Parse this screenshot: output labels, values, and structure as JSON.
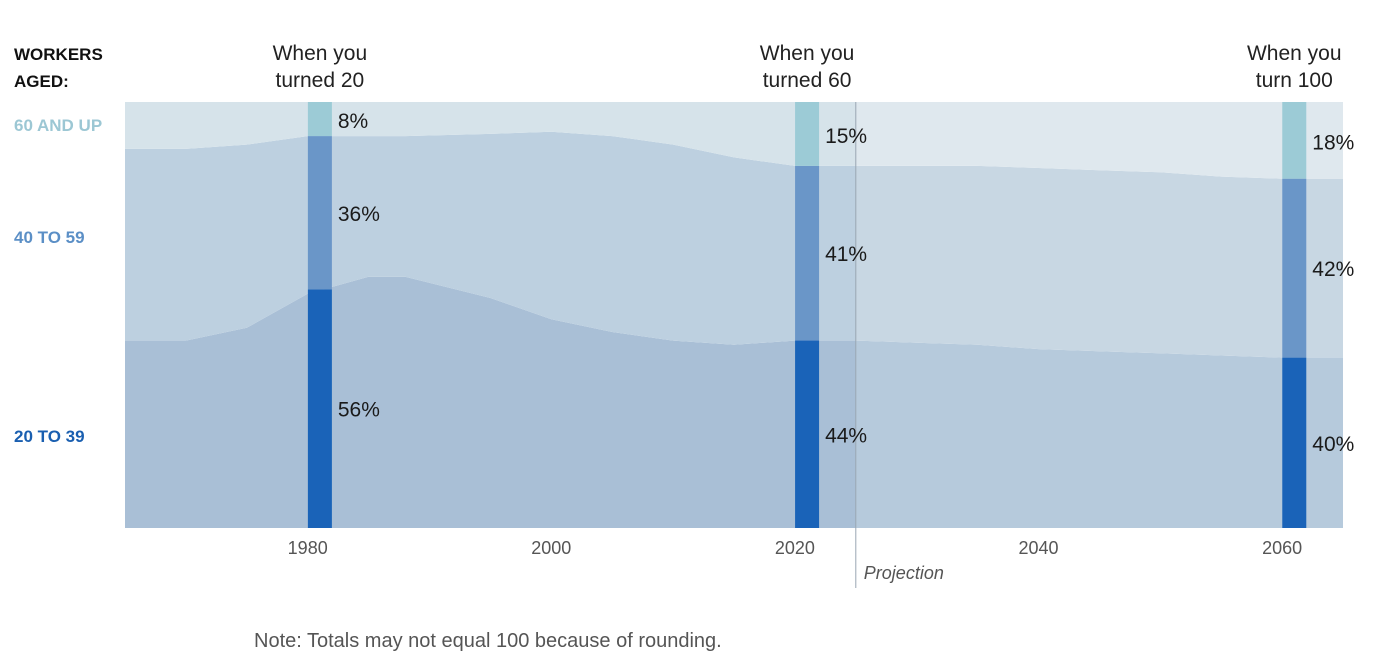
{
  "colors": {
    "age_20_39": "#1a63b8",
    "age_40_59": "#6a96c8",
    "age_60_up": "#9ccbd6",
    "label_20_39": "#1a5fb0",
    "label_40_59": "#5b8fc6",
    "label_60_up": "#9cc7d4",
    "bg_20_39": "#a9bfd6",
    "bg_40_59": "#bdd0e0",
    "bg_60_up": "#d6e3ea",
    "bg_20_39_proj": "#b6cadc",
    "bg_40_59_proj": "#c8d7e3",
    "bg_60_up_proj": "#dfe8ee"
  },
  "legend_title": [
    "WORKERS",
    "AGED:"
  ],
  "note": "Note: Totals may not equal 100 because of rounding.",
  "chart_data": {
    "type": "area",
    "stacked": true,
    "percent": true,
    "xlim": [
      1965,
      2065
    ],
    "ylim": [
      0,
      100
    ],
    "x_ticks": [
      "1980",
      "2000",
      "2020",
      "2040",
      "2060"
    ],
    "projection_start": 2025,
    "projection_label": "Projection",
    "series": [
      {
        "name": "20 TO 39",
        "label": "20 TO 39",
        "color_key": "age_20_39",
        "x": [
          1965,
          1970,
          1975,
          1980,
          1985,
          1988,
          1995,
          2000,
          2005,
          2010,
          2015,
          2020,
          2025,
          2030,
          2035,
          2040,
          2045,
          2050,
          2055,
          2060,
          2065
        ],
        "y": [
          44,
          44,
          47,
          55,
          59,
          59,
          54,
          49,
          46,
          44,
          43,
          44,
          44,
          43.5,
          43,
          42,
          41.5,
          41,
          40.5,
          40,
          40
        ]
      },
      {
        "name": "40 TO 59",
        "label": "40 TO 59",
        "color_key": "age_40_59",
        "x": [
          1965,
          1970,
          1975,
          1980,
          1985,
          1988,
          1995,
          2000,
          2005,
          2010,
          2015,
          2020,
          2025,
          2030,
          2035,
          2040,
          2045,
          2050,
          2055,
          2060,
          2065
        ],
        "y": [
          45,
          45,
          43,
          37,
          33,
          33,
          38.5,
          44,
          46,
          46,
          44,
          41,
          41,
          41.5,
          42,
          42.5,
          42.5,
          42.5,
          42,
          42,
          42
        ]
      },
      {
        "name": "60 AND UP",
        "label": "60 AND UP",
        "color_key": "age_60_up",
        "x": [
          1965,
          1970,
          1975,
          1980,
          1985,
          1988,
          1995,
          2000,
          2005,
          2010,
          2015,
          2020,
          2025,
          2030,
          2035,
          2040,
          2045,
          2050,
          2055,
          2060,
          2065
        ],
        "y": [
          11,
          11,
          10,
          8,
          8,
          8,
          7.5,
          7,
          8,
          10,
          13,
          15,
          15,
          15,
          15,
          15.5,
          16,
          16.5,
          17.5,
          18,
          18
        ]
      }
    ],
    "highlights": [
      {
        "x": 1981,
        "header": [
          "When you",
          "turned 20"
        ],
        "values": [
          56,
          36,
          8
        ],
        "labels": [
          "56%",
          "36%",
          "8%"
        ]
      },
      {
        "x": 2021,
        "header": [
          "When you",
          "turned 60"
        ],
        "values": [
          44,
          41,
          15
        ],
        "labels": [
          "44%",
          "41%",
          "15%"
        ]
      },
      {
        "x": 2061,
        "header": [
          "When you",
          "turn 100"
        ],
        "values": [
          40,
          42,
          18
        ],
        "labels": [
          "40%",
          "42%",
          "18%"
        ]
      }
    ]
  }
}
